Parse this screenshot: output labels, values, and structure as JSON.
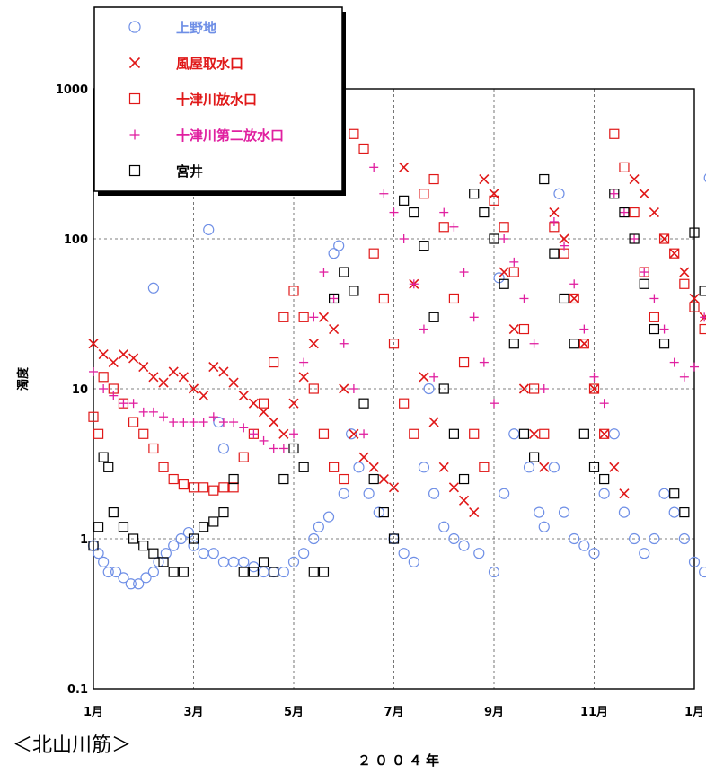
{
  "subtitle": "＜北山川筋＞",
  "chart_data": {
    "type": "scatter",
    "xlabel": "２００４年",
    "ylabel": "濁度",
    "yscale": "log",
    "ylim": [
      0.1,
      1000
    ],
    "y_ticks": [
      "0.1",
      "1",
      "10",
      "100",
      "1000"
    ],
    "x_ticks": [
      "1月",
      "3月",
      "5月",
      "7月",
      "9月",
      "11月",
      "1月"
    ],
    "grid": true,
    "legend_position": "top-left",
    "series": [
      {
        "name": "上野地",
        "marker": "circle",
        "color": "#6f8fe6",
        "x": [
          0.0,
          0.1,
          0.2,
          0.3,
          0.45,
          0.6,
          0.75,
          0.9,
          1.05,
          1.2,
          1.3,
          1.45,
          1.6,
          1.75,
          1.9,
          2.0,
          2.2,
          2.4,
          2.6,
          2.8,
          3.0,
          3.2,
          3.4,
          3.6,
          3.8,
          4.0,
          4.2,
          4.4,
          4.5,
          4.7,
          5.0,
          5.15,
          5.3,
          5.5,
          5.7,
          6.0,
          6.2,
          6.4,
          6.6,
          6.7,
          6.8,
          7.0,
          7.2,
          7.4,
          7.7,
          8.0,
          8.2,
          8.4,
          8.7,
          8.9,
          9.0,
          9.2,
          9.4,
          9.6,
          9.8,
          10.0,
          10.2,
          10.4,
          10.6,
          10.8,
          11.0,
          11.2,
          11.4,
          11.6,
          11.8,
          12.0,
          12.2,
          1.2,
          2.3,
          2.5,
          2.6,
          4.8,
          4.9,
          8.1,
          9.3,
          12.3
        ],
        "y": [
          0.9,
          0.8,
          0.7,
          0.6,
          0.6,
          0.55,
          0.5,
          0.5,
          0.55,
          0.6,
          0.7,
          0.8,
          0.9,
          1.0,
          1.1,
          0.9,
          0.8,
          0.8,
          0.7,
          0.7,
          0.7,
          0.65,
          0.6,
          0.6,
          0.6,
          0.7,
          0.8,
          1.0,
          1.2,
          1.4,
          2.0,
          5.0,
          3.0,
          2.0,
          1.5,
          1.0,
          0.8,
          0.7,
          3.0,
          10.0,
          2.0,
          1.2,
          1.0,
          0.9,
          0.8,
          0.6,
          2.0,
          5.0,
          3.0,
          1.5,
          1.2,
          3.0,
          1.5,
          1.0,
          0.9,
          0.8,
          2.0,
          5.0,
          1.5,
          1.0,
          0.8,
          1.0,
          2.0,
          1.5,
          1.0,
          0.7,
          0.6,
          47,
          115,
          6,
          4,
          80,
          90,
          55,
          200,
          255
        ]
      },
      {
        "name": "風屋取水口",
        "marker": "x",
        "color": "#e01818",
        "x": [
          0.0,
          0.2,
          0.4,
          0.6,
          0.8,
          1.0,
          1.2,
          1.4,
          1.6,
          1.8,
          2.0,
          2.2,
          2.4,
          2.6,
          2.8,
          3.0,
          3.2,
          3.4,
          3.6,
          3.8,
          4.0,
          4.2,
          4.4,
          4.6,
          4.8,
          5.0,
          5.2,
          5.4,
          5.6,
          5.8,
          6.0,
          6.2,
          6.4,
          6.6,
          6.8,
          7.0,
          7.2,
          7.4,
          7.6,
          7.8,
          8.0,
          8.2,
          8.4,
          8.6,
          8.8,
          9.0,
          9.2,
          9.4,
          9.6,
          9.8,
          10.0,
          10.2,
          10.4,
          10.6,
          10.8,
          11.0,
          11.2,
          11.4,
          11.6,
          11.8,
          12.0,
          12.2
        ],
        "y": [
          20,
          17,
          15,
          17,
          16,
          14,
          12,
          11,
          13,
          12,
          10,
          9,
          14,
          13,
          11,
          9,
          8,
          7,
          6,
          5,
          8,
          12,
          20,
          30,
          25,
          10,
          5,
          3.5,
          3,
          2.5,
          2.2,
          300,
          50,
          12,
          6,
          3,
          2.2,
          1.8,
          1.5,
          250,
          200,
          60,
          25,
          10,
          5,
          3,
          150,
          100,
          40,
          20,
          10,
          5,
          3,
          2,
          250,
          200,
          150,
          100,
          80,
          60,
          40,
          30
        ]
      },
      {
        "name": "十津川放水口",
        "marker": "square",
        "color": "#e01818",
        "x": [
          0.0,
          0.1,
          0.2,
          0.4,
          0.6,
          0.8,
          1.0,
          1.2,
          1.4,
          1.6,
          1.8,
          2.0,
          2.2,
          2.4,
          2.6,
          2.8,
          3.0,
          3.2,
          3.4,
          3.6,
          3.8,
          4.0,
          4.2,
          4.4,
          4.6,
          4.8,
          5.0,
          5.2,
          5.4,
          5.6,
          5.8,
          6.0,
          6.2,
          6.4,
          6.6,
          6.8,
          7.0,
          7.2,
          7.4,
          7.6,
          7.8,
          8.0,
          8.2,
          8.4,
          8.6,
          8.8,
          9.0,
          9.2,
          9.4,
          9.6,
          9.8,
          10.0,
          10.2,
          10.4,
          10.6,
          10.8,
          11.0,
          11.2,
          11.4,
          11.6,
          11.8,
          12.0,
          12.2
        ],
        "y": [
          6.5,
          5,
          12,
          10,
          8,
          6,
          5,
          4,
          3,
          2.5,
          2.3,
          2.2,
          2.2,
          2.1,
          2.2,
          2.2,
          3.5,
          5,
          8,
          15,
          30,
          45,
          30,
          10,
          5,
          3,
          2.5,
          500,
          400,
          80,
          40,
          20,
          8,
          5,
          200,
          250,
          120,
          40,
          15,
          5,
          3,
          180,
          120,
          60,
          25,
          10,
          5,
          120,
          80,
          40,
          20,
          10,
          5,
          500,
          300,
          150,
          60,
          30,
          100,
          80,
          50,
          35,
          25
        ]
      },
      {
        "name": "十津川第二放水口",
        "marker": "plus",
        "color": "#e020a0",
        "x": [
          0.0,
          0.2,
          0.4,
          0.6,
          0.8,
          1.0,
          1.2,
          1.4,
          1.6,
          1.8,
          2.0,
          2.2,
          2.4,
          2.6,
          2.8,
          3.0,
          3.2,
          3.4,
          3.6,
          3.8,
          4.0,
          4.2,
          4.4,
          4.6,
          4.8,
          5.0,
          5.2,
          5.4,
          5.6,
          5.8,
          6.0,
          6.2,
          6.4,
          6.6,
          6.8,
          7.0,
          7.2,
          7.4,
          7.6,
          7.8,
          8.0,
          8.2,
          8.4,
          8.6,
          8.8,
          9.0,
          9.2,
          9.4,
          9.6,
          9.8,
          10.0,
          10.2,
          10.4,
          10.6,
          10.8,
          11.0,
          11.2,
          11.4,
          11.6,
          11.8,
          12.0,
          12.2
        ],
        "y": [
          13,
          10,
          9,
          8,
          8,
          7,
          7,
          6.5,
          6,
          6,
          6,
          6,
          6.5,
          6,
          6,
          5.5,
          5,
          4.5,
          4,
          4,
          5,
          15,
          30,
          60,
          40,
          20,
          10,
          5,
          300,
          200,
          150,
          100,
          50,
          25,
          12,
          150,
          120,
          60,
          30,
          15,
          8,
          100,
          70,
          40,
          20,
          10,
          130,
          90,
          50,
          25,
          12,
          8,
          200,
          150,
          100,
          60,
          40,
          25,
          15,
          12,
          14,
          30
        ]
      },
      {
        "name": "宮井",
        "marker": "square",
        "color": "#000000",
        "x": [
          0.0,
          0.1,
          0.2,
          0.3,
          0.4,
          0.6,
          0.8,
          1.0,
          1.2,
          1.4,
          1.6,
          1.8,
          2.0,
          2.2,
          2.4,
          2.6,
          2.8,
          3.0,
          3.2,
          3.4,
          3.6,
          3.8,
          4.0,
          4.2,
          4.4,
          4.6,
          4.8,
          5.0,
          5.2,
          5.4,
          5.6,
          5.8,
          6.0,
          6.2,
          6.4,
          6.6,
          6.8,
          7.0,
          7.2,
          7.4,
          7.6,
          7.8,
          8.0,
          8.2,
          8.4,
          8.6,
          8.8,
          9.0,
          9.2,
          9.4,
          9.6,
          9.8,
          10.0,
          10.2,
          10.4,
          10.6,
          10.8,
          11.0,
          11.2,
          11.4,
          11.6,
          11.8,
          12.0,
          12.2
        ],
        "y": [
          0.9,
          1.2,
          3.5,
          3,
          1.5,
          1.2,
          1.0,
          0.9,
          0.8,
          0.7,
          0.6,
          0.6,
          1.0,
          1.2,
          1.3,
          1.5,
          2.5,
          0.6,
          0.6,
          0.7,
          0.6,
          2.5,
          4.0,
          3,
          0.6,
          0.6,
          40,
          60,
          45,
          8,
          2.5,
          1.5,
          1.0,
          180,
          150,
          90,
          30,
          10,
          5,
          2.5,
          200,
          150,
          100,
          50,
          20,
          5,
          3.5,
          250,
          80,
          40,
          20,
          5,
          3,
          2.5,
          200,
          150,
          100,
          50,
          25,
          20,
          2,
          1.5,
          110,
          45
        ]
      }
    ]
  }
}
